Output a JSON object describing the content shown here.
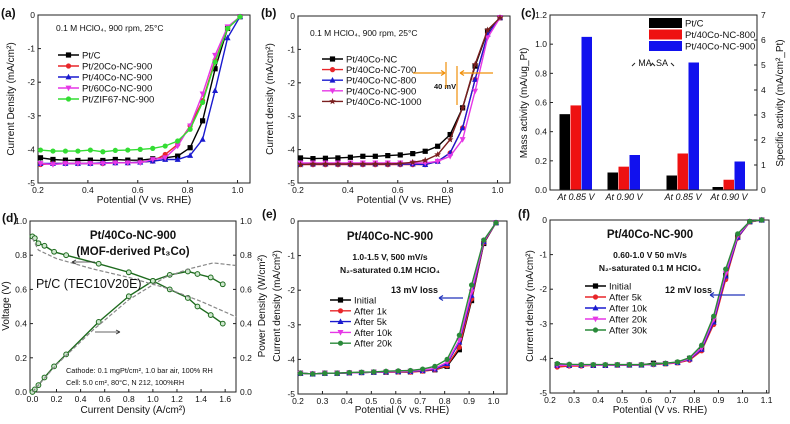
{
  "chart_data": [
    {
      "id": "a",
      "type": "line",
      "panel_label": "(a)",
      "xlabel": "Potential (V vs. RHE)",
      "ylabel": "Current Density (mA/cm²)",
      "xlim": [
        0.2,
        1.05
      ],
      "ylim": [
        -5,
        0
      ],
      "xticks": [
        "0.2",
        "0.4",
        "0.6",
        "0.8",
        "1.0"
      ],
      "yticks": [
        "-5",
        "-4",
        "-3",
        "-2",
        "-1",
        "0"
      ],
      "annotations": [
        "0.1 M HClO₄, 900 rpm, 25°C"
      ],
      "x": [
        0.21,
        0.26,
        0.31,
        0.36,
        0.41,
        0.46,
        0.51,
        0.56,
        0.61,
        0.66,
        0.71,
        0.76,
        0.81,
        0.86,
        0.91,
        0.96,
        1.01
      ],
      "series": [
        {
          "name": "Pt/C",
          "color": "#000000",
          "marker": "square",
          "y": [
            -4.25,
            -4.3,
            -4.32,
            -4.33,
            -4.32,
            -4.33,
            -4.3,
            -4.32,
            -4.32,
            -4.28,
            -4.25,
            -4.2,
            -3.95,
            -3.15,
            -1.6,
            -0.4,
            -0.05
          ]
        },
        {
          "name": "Pt/20Co-NC-900",
          "color": "#e8262a",
          "marker": "circle",
          "y": [
            -4.45,
            -4.42,
            -4.42,
            -4.42,
            -4.42,
            -4.42,
            -4.4,
            -4.4,
            -4.38,
            -4.35,
            -4.15,
            -3.85,
            -3.3,
            -2.55,
            -1.35,
            -0.4,
            -0.05
          ]
        },
        {
          "name": "Pt/40Co-NC-900",
          "color": "#1a1acf",
          "marker": "tri-up",
          "y": [
            -4.42,
            -4.42,
            -4.42,
            -4.42,
            -4.42,
            -4.4,
            -4.4,
            -4.4,
            -4.38,
            -4.35,
            -4.3,
            -4.3,
            -4.18,
            -3.7,
            -2.25,
            -0.68,
            -0.05
          ]
        },
        {
          "name": "Pt/60Co-NC-900",
          "color": "#e637e6",
          "marker": "tri-down",
          "y": [
            -4.42,
            -4.45,
            -4.42,
            -4.42,
            -4.42,
            -4.42,
            -4.4,
            -4.4,
            -4.4,
            -4.3,
            -4.25,
            -3.9,
            -3.3,
            -2.35,
            -1.2,
            -0.35,
            -0.05
          ]
        },
        {
          "name": "Pt/ZIF67-NC-900",
          "color": "#33dd33",
          "marker": "circle",
          "y": [
            -4.02,
            -4.05,
            -4.05,
            -4.05,
            -4.02,
            -4.07,
            -4.03,
            -4.02,
            -4.0,
            -3.97,
            -3.9,
            -3.75,
            -3.4,
            -2.6,
            -1.4,
            -0.4,
            -0.05
          ]
        }
      ]
    },
    {
      "id": "b",
      "type": "line",
      "panel_label": "(b)",
      "xlabel": "Potential (V vs. RHE)",
      "ylabel": "Current density (mA/cm²)",
      "xlim": [
        0.2,
        1.05
      ],
      "ylim": [
        -5,
        0
      ],
      "xticks": [
        "0.2",
        "0.4",
        "0.6",
        "0.8",
        "1.0"
      ],
      "yticks": [
        "-5",
        "-4",
        "-3",
        "-2",
        "-1",
        "0"
      ],
      "annotations": [
        "0.1 M HClO₄, 900 rpm, 25°C",
        "40 mV"
      ],
      "annotation_color": "#f0900a",
      "x": [
        0.21,
        0.26,
        0.31,
        0.36,
        0.41,
        0.46,
        0.51,
        0.56,
        0.61,
        0.66,
        0.71,
        0.76,
        0.81,
        0.86,
        0.91,
        0.96,
        1.01
      ],
      "series": [
        {
          "name": "Pt/40Co-NC",
          "color": "#000000",
          "marker": "square",
          "y": [
            -4.25,
            -4.27,
            -4.26,
            -4.25,
            -4.23,
            -4.2,
            -4.2,
            -4.18,
            -4.16,
            -4.12,
            -4.05,
            -3.9,
            -3.55,
            -2.75,
            -1.5,
            -0.45,
            -0.05
          ]
        },
        {
          "name": "Pt/40Co-NC-700",
          "color": "#e8262a",
          "marker": "circle",
          "y": [
            -4.45,
            -4.45,
            -4.45,
            -4.45,
            -4.45,
            -4.45,
            -4.45,
            -4.45,
            -4.45,
            -4.45,
            -4.45,
            -4.35,
            -4.1,
            -3.35,
            -1.9,
            -0.55,
            -0.05
          ]
        },
        {
          "name": "Pt/40Co-NC-800",
          "color": "#1a1acf",
          "marker": "tri-up",
          "y": [
            -4.43,
            -4.43,
            -4.43,
            -4.43,
            -4.43,
            -4.43,
            -4.43,
            -4.43,
            -4.43,
            -4.43,
            -4.45,
            -4.35,
            -4.1,
            -3.35,
            -1.9,
            -0.55,
            -0.05
          ]
        },
        {
          "name": "Pt/40Co-NC-900",
          "color": "#e637e6",
          "marker": "tri-down",
          "y": [
            -4.4,
            -4.4,
            -4.4,
            -4.4,
            -4.4,
            -4.4,
            -4.4,
            -4.4,
            -4.4,
            -4.4,
            -4.4,
            -4.35,
            -4.2,
            -3.7,
            -2.25,
            -0.65,
            -0.05
          ]
        },
        {
          "name": "Pt/40Co-NC-1000",
          "color": "#7a1f1f",
          "marker": "star",
          "y": [
            -4.45,
            -4.43,
            -4.43,
            -4.43,
            -4.43,
            -4.43,
            -4.43,
            -4.43,
            -4.42,
            -4.38,
            -4.32,
            -4.15,
            -3.7,
            -2.75,
            -1.45,
            -0.42,
            -0.05
          ]
        }
      ]
    },
    {
      "id": "c",
      "type": "bar",
      "panel_label": "(c)",
      "ylabel": "Mass activity (mA/ug_Pt)",
      "ylabel_right": "Specific activity (mA/cm²_Pt)",
      "ylim": [
        0,
        1.2
      ],
      "ylim_right": [
        0,
        7
      ],
      "yticks": [
        "0.0",
        "0.2",
        "0.4",
        "0.6",
        "0.8",
        "1.0",
        "1.2"
      ],
      "yticks_right": [
        "0",
        "1",
        "2",
        "3",
        "4",
        "5",
        "6",
        "7"
      ],
      "categories": [
        "At 0.85 V",
        "At 0.90 V",
        "At 0.85 V",
        "At 0.90 V"
      ],
      "group_labels": [
        "MA",
        "SA"
      ],
      "series": [
        {
          "name": "Pt/C",
          "color": "#000000",
          "mass_activity": [
            0.52,
            0.12
          ],
          "specific_activity": [
            0.58,
            0.12
          ]
        },
        {
          "name": "Pt/40Co-NC-800",
          "color": "#ee1111",
          "mass_activity": [
            0.58,
            0.16
          ],
          "specific_activity": [
            1.46,
            0.41
          ]
        },
        {
          "name": "Pt/40Co-NC-900",
          "color": "#1111ee",
          "mass_activity": [
            1.05,
            0.24
          ],
          "specific_activity": [
            5.1,
            1.14
          ]
        }
      ]
    },
    {
      "id": "d",
      "type": "line",
      "panel_label": "(d)",
      "xlabel": "Current Density (A/cm²)",
      "ylabel": "Voltage (V)",
      "ylabel_right": "Power Density (W/cm²)",
      "xlim": [
        -0.02,
        1.69
      ],
      "ylim": [
        0,
        1.0
      ],
      "ylim_right": [
        0,
        1.0
      ],
      "xticks": [
        "0.0",
        "0.2",
        "0.4",
        "0.6",
        "0.8",
        "1.0",
        "1.2",
        "1.4",
        "1.6"
      ],
      "yticks": [
        "0.0",
        "0.2",
        "0.4",
        "0.6",
        "0.8",
        "1.0"
      ],
      "yticks_right": [
        "0.0",
        "0.2",
        "0.4",
        "0.6",
        "0.8",
        "1.0"
      ],
      "annotations": [
        "Pt/40Co-NC-900",
        "(MOF-derived Pt₃Co)",
        "Pt/C (TEC10V20E)",
        "Cathode: 0.1 mgPt/cm², 1.0 bar air, 100% RH",
        "Cell: 5.0 cm², 80°C, N 212, 100%RH"
      ],
      "series": [
        {
          "name": "Pt/40Co-NC-900 voltage",
          "color": "#1e6b1e",
          "marker": "circle-open",
          "axis": "left",
          "x": [
            0,
            0.02,
            0.05,
            0.1,
            0.18,
            0.28,
            0.55,
            0.8,
            1.0,
            1.14,
            1.29,
            1.37,
            1.48,
            1.58
          ],
          "y": [
            0.91,
            0.9,
            0.87,
            0.855,
            0.82,
            0.8,
            0.75,
            0.7,
            0.65,
            0.6,
            0.55,
            0.5,
            0.45,
            0.4
          ]
        },
        {
          "name": "Pt/40Co-NC-900 power",
          "color": "#1e6b1e",
          "marker": "circle-open",
          "axis": "right",
          "x": [
            0,
            0.02,
            0.05,
            0.1,
            0.18,
            0.28,
            0.55,
            0.8,
            1.0,
            1.14,
            1.29,
            1.37,
            1.48,
            1.58
          ],
          "y": [
            0,
            0.015,
            0.04,
            0.085,
            0.15,
            0.22,
            0.41,
            0.56,
            0.65,
            0.685,
            0.705,
            0.69,
            0.67,
            0.63
          ]
        },
        {
          "name": "Pt/C voltage",
          "color": "#888888",
          "dashed": true,
          "axis": "left",
          "x": [
            0,
            0.05,
            0.2,
            0.5,
            0.8,
            1.1,
            1.4,
            1.69
          ],
          "y": [
            0.9,
            0.83,
            0.78,
            0.72,
            0.67,
            0.61,
            0.53,
            0.44
          ]
        },
        {
          "name": "Pt/C power",
          "color": "#888888",
          "dashed": true,
          "axis": "right",
          "x": [
            0,
            0.05,
            0.2,
            0.5,
            0.8,
            1.1,
            1.3,
            1.5,
            1.69
          ],
          "y": [
            0,
            0.04,
            0.16,
            0.36,
            0.54,
            0.67,
            0.72,
            0.755,
            0.74
          ]
        }
      ]
    },
    {
      "id": "e",
      "type": "line",
      "panel_label": "(e)",
      "xlabel": "Potential (V vs. RHE)",
      "ylabel": "Current density (mA/cm²)",
      "xlim": [
        0.2,
        1.055
      ],
      "ylim": [
        -5,
        0
      ],
      "xticks": [
        "0.2",
        "0.3",
        "0.4",
        "0.5",
        "0.6",
        "0.7",
        "0.8",
        "0.9",
        "1.0"
      ],
      "yticks": [
        "-5",
        "-4",
        "-3",
        "-2",
        "-1",
        "0"
      ],
      "annotations": [
        "Pt/40Co-NC-900",
        "1.0-1.5 V, 500 mV/s",
        "N₂-saturated 0.1M HClO₄",
        "13 mV loss"
      ],
      "x": [
        0.21,
        0.26,
        0.31,
        0.36,
        0.41,
        0.46,
        0.51,
        0.56,
        0.61,
        0.66,
        0.71,
        0.76,
        0.81,
        0.86,
        0.91,
        0.96,
        1.01
      ],
      "series": [
        {
          "name": "Initial",
          "color": "#000000",
          "marker": "square",
          "y": [
            -4.4,
            -4.42,
            -4.4,
            -4.4,
            -4.39,
            -4.38,
            -4.37,
            -4.37,
            -4.36,
            -4.36,
            -4.33,
            -4.3,
            -4.2,
            -3.72,
            -2.3,
            -0.65,
            -0.05
          ]
        },
        {
          "name": "After 1k",
          "color": "#e8262a",
          "marker": "circle",
          "y": [
            -4.4,
            -4.42,
            -4.4,
            -4.4,
            -4.39,
            -4.38,
            -4.37,
            -4.37,
            -4.36,
            -4.37,
            -4.34,
            -4.3,
            -4.18,
            -3.65,
            -2.25,
            -0.63,
            -0.05
          ]
        },
        {
          "name": "After 5k",
          "color": "#1a1acf",
          "marker": "tri-up",
          "y": [
            -4.4,
            -4.42,
            -4.4,
            -4.4,
            -4.39,
            -4.38,
            -4.37,
            -4.36,
            -4.35,
            -4.35,
            -4.32,
            -4.28,
            -4.12,
            -3.5,
            -2.15,
            -0.6,
            -0.05
          ]
        },
        {
          "name": "After 10k",
          "color": "#e637e6",
          "marker": "tri-down",
          "y": [
            -4.4,
            -4.42,
            -4.4,
            -4.4,
            -4.39,
            -4.38,
            -4.37,
            -4.36,
            -4.35,
            -4.34,
            -4.31,
            -4.26,
            -4.08,
            -3.45,
            -2.05,
            -0.58,
            -0.05
          ]
        },
        {
          "name": "After 20k",
          "color": "#2a8a3a",
          "marker": "circle",
          "y": [
            -4.4,
            -4.42,
            -4.4,
            -4.4,
            -4.38,
            -4.37,
            -4.36,
            -4.34,
            -4.33,
            -4.32,
            -4.28,
            -4.2,
            -4.0,
            -3.3,
            -1.85,
            -0.55,
            -0.05
          ]
        }
      ]
    },
    {
      "id": "f",
      "type": "line",
      "panel_label": "(f)",
      "xlabel": "Potential (V vs. RHE)",
      "ylabel": "Current density (mA/cm²)",
      "xlim": [
        0.2,
        1.11
      ],
      "ylim": [
        -5,
        0
      ],
      "xticks": [
        "0.2",
        "0.3",
        "0.4",
        "0.5",
        "0.6",
        "0.7",
        "0.8",
        "0.9",
        "1.0",
        "1.1"
      ],
      "yticks": [
        "-5",
        "-4",
        "-3",
        "-2",
        "-1",
        "0"
      ],
      "annotations": [
        "Pt/40Co-NC-900",
        "0.60-1.0 V 50 mV/s",
        "N₂-saturated 0.1 M HClO₄",
        "12 mV loss"
      ],
      "x": [
        0.23,
        0.28,
        0.33,
        0.38,
        0.43,
        0.48,
        0.53,
        0.58,
        0.63,
        0.68,
        0.73,
        0.78,
        0.83,
        0.88,
        0.93,
        0.98,
        1.03,
        1.08
      ],
      "series": [
        {
          "name": "Initial",
          "color": "#000000",
          "marker": "square",
          "y": [
            -4.18,
            -4.2,
            -4.2,
            -4.2,
            -4.2,
            -4.19,
            -4.19,
            -4.19,
            -4.14,
            -4.15,
            -4.12,
            -4.0,
            -3.7,
            -2.9,
            -1.6,
            -0.47,
            -0.05,
            0
          ]
        },
        {
          "name": "After 5k",
          "color": "#e8262a",
          "marker": "circle",
          "y": [
            -4.25,
            -4.22,
            -4.22,
            -4.2,
            -4.2,
            -4.2,
            -4.2,
            -4.19,
            -4.18,
            -4.16,
            -4.13,
            -4.05,
            -3.78,
            -3.02,
            -1.72,
            -0.52,
            -0.06,
            0
          ]
        },
        {
          "name": "After 10k",
          "color": "#1a1acf",
          "marker": "tri-up",
          "y": [
            -4.2,
            -4.2,
            -4.2,
            -4.2,
            -4.2,
            -4.19,
            -4.19,
            -4.19,
            -4.17,
            -4.15,
            -4.12,
            -4.02,
            -3.74,
            -2.95,
            -1.62,
            -0.5,
            -0.05,
            0
          ]
        },
        {
          "name": "After 20k",
          "color": "#e637e6",
          "marker": "tri-down",
          "y": [
            -4.2,
            -4.2,
            -4.2,
            -4.2,
            -4.2,
            -4.19,
            -4.19,
            -4.19,
            -4.17,
            -4.15,
            -4.12,
            -4.01,
            -3.7,
            -2.88,
            -1.55,
            -0.46,
            -0.05,
            0
          ]
        },
        {
          "name": "After 30k",
          "color": "#2a8a3a",
          "marker": "circle",
          "y": [
            -4.15,
            -4.17,
            -4.18,
            -4.18,
            -4.18,
            -4.18,
            -4.18,
            -4.18,
            -4.16,
            -4.14,
            -4.1,
            -3.98,
            -3.62,
            -2.78,
            -1.42,
            -0.4,
            -0.04,
            0
          ]
        }
      ]
    }
  ]
}
